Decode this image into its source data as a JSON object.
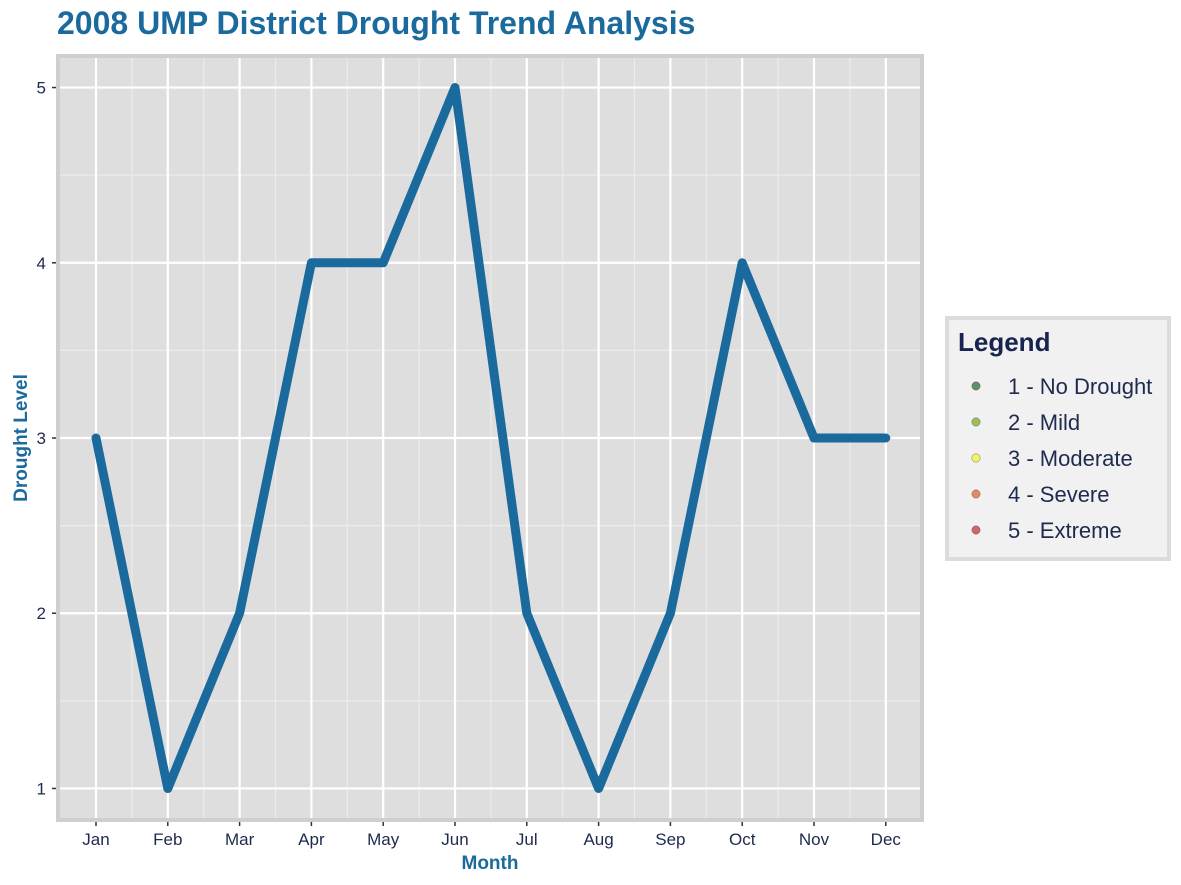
{
  "chart_data": {
    "type": "line",
    "title": "2008 UMP District Drought Trend Analysis",
    "xlabel": "Month",
    "ylabel": "Drought Level",
    "categories": [
      "Jan",
      "Feb",
      "Mar",
      "Apr",
      "May",
      "Jun",
      "Jul",
      "Aug",
      "Sep",
      "Oct",
      "Nov",
      "Dec"
    ],
    "series": [
      {
        "values": [
          3,
          1,
          2,
          4,
          4,
          5,
          2,
          1,
          2,
          4,
          3,
          3
        ],
        "color": "#1b6a9e"
      }
    ],
    "ylim": [
      0.82,
      5.18
    ],
    "yticks": [
      1,
      2,
      3,
      4,
      5
    ],
    "grid": true,
    "legend": {
      "title": "Legend",
      "position": "right",
      "items": [
        {
          "label": "1 - No Drought",
          "color": "#5e8f68"
        },
        {
          "label": "2 - Mild",
          "color": "#9cbd58"
        },
        {
          "label": "3 - Moderate",
          "color": "#f2f26a"
        },
        {
          "label": "4 - Severe",
          "color": "#e08a62"
        },
        {
          "label": "5 - Extreme",
          "color": "#d06565"
        }
      ]
    },
    "colors": {
      "title": "#1b6a9e",
      "axis_title": "#1b6a9e",
      "tick_text": "#1e2a4e",
      "panel_bg": "#dedede",
      "panel_border": "#cfcfcf",
      "legend_bg": "#f1f1f1",
      "legend_title": "#17244f",
      "legend_text": "#1e2a4e"
    }
  }
}
